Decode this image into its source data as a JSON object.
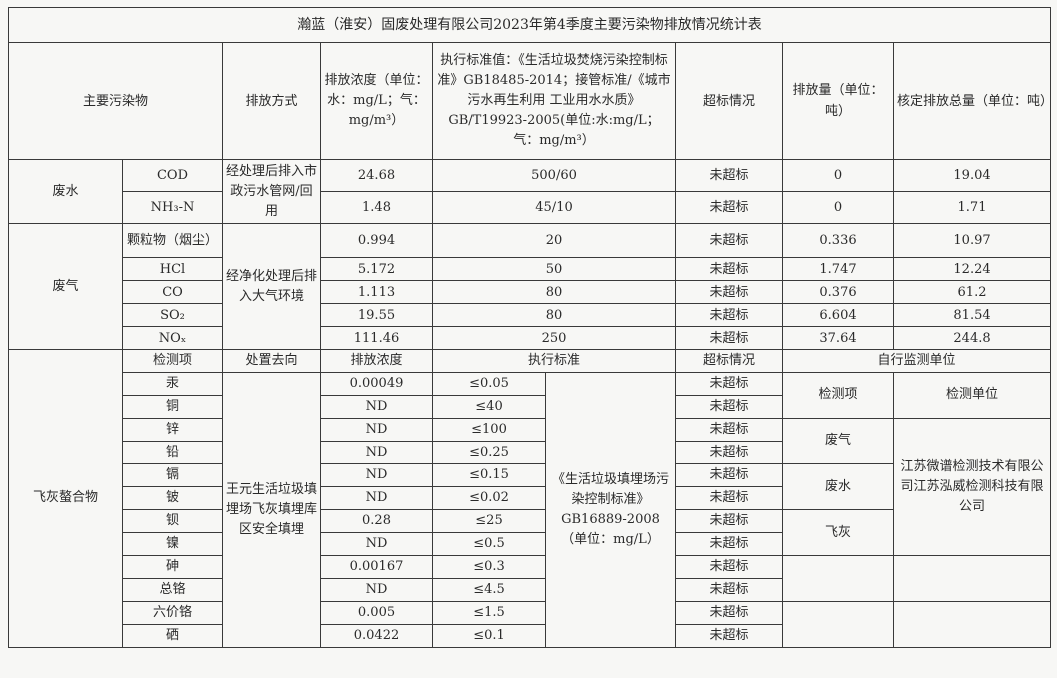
{
  "title": "瀚蓝（淮安）固废处理有限公司2023年第4季度主要污染物排放情况统计表",
  "header": {
    "pollutant": "主要污染物",
    "method": "排放方式",
    "conc": "排放浓度（单位：水：mg/L；气：mg/m³）",
    "standard": "执行标准值：《生活垃圾焚烧污染控制标准》GB18485-2014；接管标准/《城市污水再生利用 工业用水水质》GB/T19923-2005(单位:水:mg/L；气：mg/m³）",
    "exceed": "超标情况",
    "amount": "排放量（单位：吨）",
    "total": "核定排放总量（单位：吨）"
  },
  "wastewater": {
    "label": "废水",
    "method": "经处理后排入市政污水管网/回用",
    "rows": [
      {
        "item": "COD",
        "conc": "24.68",
        "std": "500/60",
        "status": "未超标",
        "amount": "0",
        "total": "19.04"
      },
      {
        "item": "NH₃-N",
        "conc": "1.48",
        "std": "45/10",
        "status": "未超标",
        "amount": "0",
        "total": "1.71"
      }
    ]
  },
  "exhaust": {
    "label": "废气",
    "method": "经净化处理后排入大气环境",
    "rows": [
      {
        "item": "颗粒物（烟尘）",
        "conc": "0.994",
        "std": "20",
        "status": "未超标",
        "amount": "0.336",
        "total": "10.97"
      },
      {
        "item": "HCl",
        "conc": "5.172",
        "std": "50",
        "status": "未超标",
        "amount": "1.747",
        "total": "12.24"
      },
      {
        "item": "CO",
        "conc": "1.113",
        "std": "80",
        "status": "未超标",
        "amount": "0.376",
        "total": "61.2"
      },
      {
        "item": "SO₂",
        "conc": "19.55",
        "std": "80",
        "status": "未超标",
        "amount": "6.604",
        "total": "81.54"
      },
      {
        "item": "NOₓ",
        "conc": "111.46",
        "std": "250",
        "status": "未超标",
        "amount": "37.64",
        "total": "244.8"
      }
    ]
  },
  "flyash": {
    "label": "飞灰螯合物",
    "h_item": "检测项",
    "h_dest": "处置去向",
    "h_conc": "排放浓度",
    "h_std": "执行标准",
    "h_status": "超标情况",
    "h_monitor": "自行监测单位",
    "dest": "王元生活垃圾填埋场飞灰填埋库区安全填埋",
    "standard": "《生活垃圾填埋场污染控制标准》GB16889-2008（单位：mg/L）",
    "rows": [
      {
        "item": "汞",
        "conc": "0.00049",
        "limit": "≤0.05",
        "status": "未超标"
      },
      {
        "item": "铜",
        "conc": "ND",
        "limit": "≤40",
        "status": "未超标"
      },
      {
        "item": "锌",
        "conc": "ND",
        "limit": "≤100",
        "status": "未超标"
      },
      {
        "item": "铅",
        "conc": "ND",
        "limit": "≤0.25",
        "status": "未超标"
      },
      {
        "item": "镉",
        "conc": "ND",
        "limit": "≤0.15",
        "status": "未超标"
      },
      {
        "item": "铍",
        "conc": "ND",
        "limit": "≤0.02",
        "status": "未超标"
      },
      {
        "item": "钡",
        "conc": "0.28",
        "limit": "≤25",
        "status": "未超标"
      },
      {
        "item": "镍",
        "conc": "ND",
        "limit": "≤0.5",
        "status": "未超标"
      },
      {
        "item": "砷",
        "conc": "0.00167",
        "limit": "≤0.3",
        "status": "未超标"
      },
      {
        "item": "总铬",
        "conc": "ND",
        "limit": "≤4.5",
        "status": "未超标"
      },
      {
        "item": "六价铬",
        "conc": "0.005",
        "limit": "≤1.5",
        "status": "未超标"
      },
      {
        "item": "硒",
        "conc": "0.0422",
        "limit": "≤0.1",
        "status": "未超标"
      }
    ],
    "monitor": {
      "h_item": "检测项",
      "h_unit": "检测单位",
      "items": [
        "废气",
        "废水",
        "飞灰"
      ],
      "unit": "江苏微谱检测技术有限公司江苏泓威检测科技有限公司"
    }
  }
}
